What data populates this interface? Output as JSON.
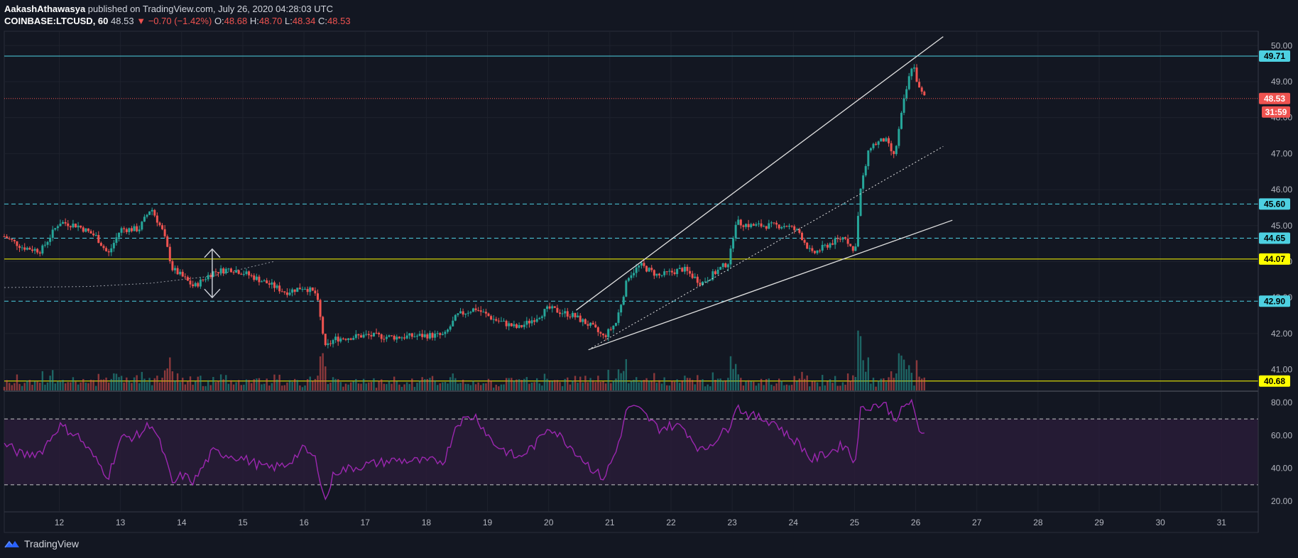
{
  "header": {
    "author": "AakashAthawasya",
    "published": "published on TradingView.com, July 26, 2020 04:28:03 UTC",
    "symbol": "COINBASE:LTCUSD, 60",
    "last": "48.53",
    "change_arrow": "▼",
    "change": "−0.70 (−1.42%)",
    "o_label": "O:",
    "o": "48.68",
    "h_label": "H:",
    "h": "48.70",
    "l_label": "L:",
    "l": "48.34",
    "c_label": "C:",
    "c": "48.53"
  },
  "footer": {
    "brand": "TradingView",
    "logo_icon": "tradingview-logo-icon"
  },
  "colors": {
    "background": "#131722",
    "up": "#26a69a",
    "down": "#ef5350",
    "cyan_level": "#4dd0e1",
    "yellow_level": "#ffff00",
    "rsi_line": "#9c27b0",
    "rsi_band": "#2a1d3a"
  },
  "chart_data": {
    "type": "candlestick",
    "symbol": "COINBASE:LTCUSD",
    "interval": "60",
    "price_axis": {
      "ylim": [
        40.4,
        50.4
      ],
      "ticks": [
        "41.00",
        "42.00",
        "43.00",
        "44.00",
        "45.00",
        "46.00",
        "47.00",
        "48.00",
        "49.00",
        "50.00"
      ]
    },
    "date_axis": {
      "xlim": [
        11.1,
        31.6
      ],
      "ticks": [
        "12",
        "13",
        "14",
        "15",
        "16",
        "17",
        "18",
        "19",
        "20",
        "21",
        "22",
        "23",
        "24",
        "25",
        "26",
        "27",
        "28",
        "29",
        "30",
        "31"
      ]
    },
    "levels": [
      {
        "value": 49.71,
        "label": "49.71",
        "style": "solid",
        "color": "#4dd0e1"
      },
      {
        "value": 45.6,
        "label": "45.60",
        "style": "dashed",
        "color": "#4dd0e1"
      },
      {
        "value": 44.65,
        "label": "44.65",
        "style": "dashed",
        "color": "#4dd0e1"
      },
      {
        "value": 44.07,
        "label": "44.07",
        "style": "solid",
        "color": "#ffff00"
      },
      {
        "value": 42.9,
        "label": "42.90",
        "style": "dashed",
        "color": "#4dd0e1"
      },
      {
        "value": 40.68,
        "label": "40.68",
        "style": "solid",
        "color": "#ffff00"
      }
    ],
    "last_price": {
      "value": 48.53,
      "label": "48.53",
      "countdown": "31:59"
    },
    "trendlines": [
      {
        "x1": 20.45,
        "y1": 42.65,
        "x2": 26.45,
        "y2": 50.25,
        "style": "solid"
      },
      {
        "x1": 20.65,
        "y1": 41.55,
        "x2": 26.6,
        "y2": 45.15,
        "style": "solid"
      },
      {
        "x1": 20.7,
        "y1": 41.6,
        "x2": 26.45,
        "y2": 47.2,
        "style": "dotted"
      }
    ],
    "curve": [
      [
        11.1,
        43.28
      ],
      [
        12.5,
        43.31
      ],
      [
        13.5,
        43.4
      ],
      [
        14.5,
        43.6
      ],
      [
        15.5,
        44.0
      ]
    ],
    "arrow": {
      "x": 14.5,
      "y_top": 44.35,
      "y_bottom": 43.0
    },
    "key_points": [
      [
        11.1,
        44.7
      ],
      [
        11.4,
        44.4
      ],
      [
        11.7,
        44.3
      ],
      [
        12.0,
        45.1
      ],
      [
        12.3,
        45.0
      ],
      [
        12.6,
        44.7
      ],
      [
        12.8,
        44.2
      ],
      [
        13.0,
        44.9
      ],
      [
        13.3,
        44.9
      ],
      [
        13.5,
        45.5
      ],
      [
        13.7,
        44.8
      ],
      [
        13.85,
        43.8
      ],
      [
        14.0,
        43.6
      ],
      [
        14.2,
        43.3
      ],
      [
        14.5,
        43.7
      ],
      [
        14.8,
        43.8
      ],
      [
        15.0,
        43.7
      ],
      [
        15.4,
        43.4
      ],
      [
        15.7,
        43.15
      ],
      [
        16.0,
        43.3
      ],
      [
        16.2,
        43.1
      ],
      [
        16.35,
        41.6
      ],
      [
        16.5,
        41.85
      ],
      [
        17.0,
        41.95
      ],
      [
        17.5,
        41.9
      ],
      [
        18.0,
        41.95
      ],
      [
        18.3,
        41.95
      ],
      [
        18.5,
        42.5
      ],
      [
        18.8,
        42.7
      ],
      [
        19.1,
        42.4
      ],
      [
        19.5,
        42.15
      ],
      [
        19.8,
        42.45
      ],
      [
        20.0,
        42.7
      ],
      [
        20.4,
        42.5
      ],
      [
        20.7,
        42.2
      ],
      [
        20.9,
        41.9
      ],
      [
        21.1,
        42.3
      ],
      [
        21.3,
        43.6
      ],
      [
        21.5,
        43.9
      ],
      [
        21.8,
        43.6
      ],
      [
        22.0,
        43.7
      ],
      [
        22.2,
        43.8
      ],
      [
        22.5,
        43.4
      ],
      [
        22.8,
        43.8
      ],
      [
        22.95,
        44.0
      ],
      [
        23.05,
        45.1
      ],
      [
        23.3,
        45.0
      ],
      [
        23.7,
        45.0
      ],
      [
        23.9,
        45.0
      ],
      [
        24.1,
        44.8
      ],
      [
        24.3,
        44.2
      ],
      [
        24.6,
        44.5
      ],
      [
        24.85,
        44.7
      ],
      [
        25.0,
        44.2
      ],
      [
        25.1,
        46.0
      ],
      [
        25.25,
        47.2
      ],
      [
        25.5,
        47.4
      ],
      [
        25.65,
        46.9
      ],
      [
        25.8,
        48.4
      ],
      [
        25.95,
        49.55
      ],
      [
        26.05,
        48.8
      ],
      [
        26.15,
        48.55
      ]
    ],
    "rsi": {
      "ylim": [
        14,
        86
      ],
      "ticks": [
        "20.00",
        "40.00",
        "60.00",
        "80.00"
      ],
      "upper": 70,
      "lower": 30,
      "points": [
        [
          11.1,
          55
        ],
        [
          11.4,
          48
        ],
        [
          11.7,
          50
        ],
        [
          12.0,
          66
        ],
        [
          12.3,
          60
        ],
        [
          12.6,
          45
        ],
        [
          12.8,
          35
        ],
        [
          13.0,
          58
        ],
        [
          13.3,
          60
        ],
        [
          13.5,
          68
        ],
        [
          13.7,
          50
        ],
        [
          13.85,
          30
        ],
        [
          14.0,
          36
        ],
        [
          14.2,
          32
        ],
        [
          14.5,
          50
        ],
        [
          14.8,
          48
        ],
        [
          15.0,
          46
        ],
        [
          15.4,
          40
        ],
        [
          15.7,
          42
        ],
        [
          16.0,
          52
        ],
        [
          16.2,
          45
        ],
        [
          16.35,
          20
        ],
        [
          16.5,
          38
        ],
        [
          17.0,
          42
        ],
        [
          17.5,
          45
        ],
        [
          18.0,
          44
        ],
        [
          18.3,
          45
        ],
        [
          18.5,
          68
        ],
        [
          18.8,
          72
        ],
        [
          19.1,
          55
        ],
        [
          19.5,
          46
        ],
        [
          19.8,
          55
        ],
        [
          20.0,
          66
        ],
        [
          20.4,
          52
        ],
        [
          20.7,
          40
        ],
        [
          20.9,
          34
        ],
        [
          21.1,
          50
        ],
        [
          21.3,
          78
        ],
        [
          21.5,
          75
        ],
        [
          21.8,
          64
        ],
        [
          22.0,
          66
        ],
        [
          22.2,
          65
        ],
        [
          22.5,
          50
        ],
        [
          22.8,
          60
        ],
        [
          22.95,
          65
        ],
        [
          23.05,
          78
        ],
        [
          23.3,
          72
        ],
        [
          23.7,
          68
        ],
        [
          23.9,
          60
        ],
        [
          24.1,
          55
        ],
        [
          24.3,
          45
        ],
        [
          24.6,
          50
        ],
        [
          24.85,
          55
        ],
        [
          25.0,
          42
        ],
        [
          25.1,
          75
        ],
        [
          25.25,
          78
        ],
        [
          25.5,
          79
        ],
        [
          25.65,
          70
        ],
        [
          25.8,
          76
        ],
        [
          25.95,
          82
        ],
        [
          26.05,
          60
        ],
        [
          26.15,
          60
        ]
      ]
    }
  }
}
